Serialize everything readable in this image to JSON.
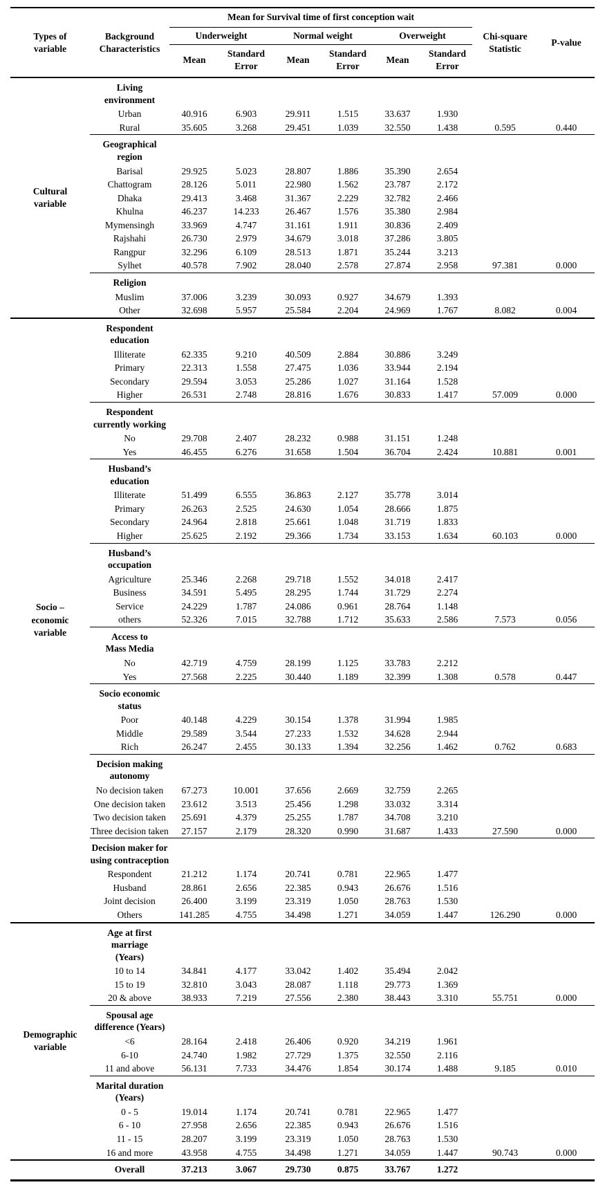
{
  "header": {
    "types_of_variable": "Types of\nvariable",
    "background_characteristics": "Background\nCharacteristics",
    "spanner": "Mean for Survival time of first conception wait",
    "weight_groups": [
      {
        "label": "Underweight"
      },
      {
        "label": "Normal weight"
      },
      {
        "label": "Overweight"
      }
    ],
    "sub_mean": "Mean",
    "sub_se": "Standard\nError",
    "chi_square": "Chi-square\nStatistic",
    "p_value": "P-value"
  },
  "sections": [
    {
      "type_label": "Cultural\nvariable",
      "subsections": [
        {
          "name": "Living\nenvironment",
          "rows": [
            {
              "label": "Urban",
              "values": [
                "40.916",
                "6.903",
                "29.911",
                "1.515",
                "33.637",
                "1.930"
              ]
            },
            {
              "label": "Rural",
              "values": [
                "35.605",
                "3.268",
                "29.451",
                "1.039",
                "32.550",
                "1.438"
              ],
              "chi": "0.595",
              "p": "0.440"
            }
          ]
        },
        {
          "name": "Geographical\nregion",
          "rows": [
            {
              "label": "Barisal",
              "values": [
                "29.925",
                "5.023",
                "28.807",
                "1.886",
                "35.390",
                "2.654"
              ]
            },
            {
              "label": "Chattogram",
              "values": [
                "28.126",
                "5.011",
                "22.980",
                "1.562",
                "23.787",
                "2.172"
              ]
            },
            {
              "label": "Dhaka",
              "values": [
                "29.413",
                "3.468",
                "31.367",
                "2.229",
                "32.782",
                "2.466"
              ]
            },
            {
              "label": "Khulna",
              "values": [
                "46.237",
                "14.233",
                "26.467",
                "1.576",
                "35.380",
                "2.984"
              ]
            },
            {
              "label": "Mymensingh",
              "values": [
                "33.969",
                "4.747",
                "31.161",
                "1.911",
                "30.836",
                "2.409"
              ]
            },
            {
              "label": "Rajshahi",
              "values": [
                "26.730",
                "2.979",
                "34.679",
                "3.018",
                "37.286",
                "3.805"
              ]
            },
            {
              "label": "Rangpur",
              "values": [
                "32.296",
                "6.109",
                "28.513",
                "1.871",
                "35.244",
                "3.213"
              ]
            },
            {
              "label": "Sylhet",
              "values": [
                "40.578",
                "7.902",
                "28.040",
                "2.578",
                "27.874",
                "2.958"
              ],
              "chi": "97.381",
              "p": "0.000"
            }
          ]
        },
        {
          "name": "Religion",
          "rows": [
            {
              "label": "Muslim",
              "values": [
                "37.006",
                "3.239",
                "30.093",
                "0.927",
                "34.679",
                "1.393"
              ]
            },
            {
              "label": "Other",
              "values": [
                "32.698",
                "5.957",
                "25.584",
                "2.204",
                "24.969",
                "1.767"
              ],
              "chi": "8.082",
              "p": "0.004"
            }
          ]
        }
      ]
    },
    {
      "type_label": "Socio –\neconomic\nvariable",
      "subsections": [
        {
          "name": "Respondent\neducation",
          "rows": [
            {
              "label": "Illiterate",
              "values": [
                "62.335",
                "9.210",
                "40.509",
                "2.884",
                "30.886",
                "3.249"
              ]
            },
            {
              "label": "Primary",
              "values": [
                "22.313",
                "1.558",
                "27.475",
                "1.036",
                "33.944",
                "2.194"
              ]
            },
            {
              "label": "Secondary",
              "values": [
                "29.594",
                "3.053",
                "25.286",
                "1.027",
                "31.164",
                "1.528"
              ]
            },
            {
              "label": "Higher",
              "values": [
                "26.531",
                "2.748",
                "28.816",
                "1.676",
                "30.833",
                "1.417"
              ],
              "chi": "57.009",
              "p": "0.000"
            }
          ]
        },
        {
          "name": "Respondent\ncurrently working",
          "rows": [
            {
              "label": "No",
              "values": [
                "29.708",
                "2.407",
                "28.232",
                "0.988",
                "31.151",
                "1.248"
              ]
            },
            {
              "label": "Yes",
              "values": [
                "46.455",
                "6.276",
                "31.658",
                "1.504",
                "36.704",
                "2.424"
              ],
              "chi": "10.881",
              "p": "0.001"
            }
          ]
        },
        {
          "name": "Husband’s\neducation",
          "rows": [
            {
              "label": "Illiterate",
              "values": [
                "51.499",
                "6.555",
                "36.863",
                "2.127",
                "35.778",
                "3.014"
              ]
            },
            {
              "label": "Primary",
              "values": [
                "26.263",
                "2.525",
                "24.630",
                "1.054",
                "28.666",
                "1.875"
              ]
            },
            {
              "label": "Secondary",
              "values": [
                "24.964",
                "2.818",
                "25.661",
                "1.048",
                "31.719",
                "1.833"
              ]
            },
            {
              "label": "Higher",
              "values": [
                "25.625",
                "2.192",
                "29.366",
                "1.734",
                "33.153",
                "1.634"
              ],
              "chi": "60.103",
              "p": "0.000"
            }
          ]
        },
        {
          "name": "Husband’s\noccupation",
          "rows": [
            {
              "label": "Agriculture",
              "values": [
                "25.346",
                "2.268",
                "29.718",
                "1.552",
                "34.018",
                "2.417"
              ]
            },
            {
              "label": "Business",
              "values": [
                "34.591",
                "5.495",
                "28.295",
                "1.744",
                "31.729",
                "2.274"
              ]
            },
            {
              "label": "Service",
              "values": [
                "24.229",
                "1.787",
                "24.086",
                "0.961",
                "28.764",
                "1.148"
              ]
            },
            {
              "label": "others",
              "values": [
                "52.326",
                "7.015",
                "32.788",
                "1.712",
                "35.633",
                "2.586"
              ],
              "chi": "7.573",
              "p": "0.056"
            }
          ]
        },
        {
          "name": "Access to\nMass Media",
          "rows": [
            {
              "label": "No",
              "values": [
                "42.719",
                "4.759",
                "28.199",
                "1.125",
                "33.783",
                "2.212"
              ]
            },
            {
              "label": "Yes",
              "values": [
                "27.568",
                "2.225",
                "30.440",
                "1.189",
                "32.399",
                "1.308"
              ],
              "chi": "0.578",
              "p": "0.447"
            }
          ]
        },
        {
          "name": "Socio economic\nstatus",
          "rows": [
            {
              "label": "Poor",
              "values": [
                "40.148",
                "4.229",
                "30.154",
                "1.378",
                "31.994",
                "1.985"
              ]
            },
            {
              "label": "Middle",
              "values": [
                "29.589",
                "3.544",
                "27.233",
                "1.532",
                "34.628",
                "2.944"
              ]
            },
            {
              "label": "Rich",
              "values": [
                "26.247",
                "2.455",
                "30.133",
                "1.394",
                "32.256",
                "1.462"
              ],
              "chi": "0.762",
              "p": "0.683"
            }
          ]
        },
        {
          "name": "Decision making\nautonomy",
          "rows": [
            {
              "label": "No decision taken",
              "values": [
                "67.273",
                "10.001",
                "37.656",
                "2.669",
                "32.759",
                "2.265"
              ]
            },
            {
              "label": "One decision taken",
              "values": [
                "23.612",
                "3.513",
                "25.456",
                "1.298",
                "33.032",
                "3.314"
              ]
            },
            {
              "label": "Two decision taken",
              "values": [
                "25.691",
                "4.379",
                "25.255",
                "1.787",
                "34.708",
                "3.210"
              ]
            },
            {
              "label": "Three decision taken",
              "values": [
                "27.157",
                "2.179",
                "28.320",
                "0.990",
                "31.687",
                "1.433"
              ],
              "chi": "27.590",
              "p": "0.000"
            }
          ]
        },
        {
          "name": "Decision maker for\nusing contraception",
          "rows": [
            {
              "label": "Respondent",
              "values": [
                "21.212",
                "1.174",
                "20.741",
                "0.781",
                "22.965",
                "1.477"
              ]
            },
            {
              "label": "Husband",
              "values": [
                "28.861",
                "2.656",
                "22.385",
                "0.943",
                "26.676",
                "1.516"
              ]
            },
            {
              "label": "Joint decision",
              "values": [
                "26.400",
                "3.199",
                "23.319",
                "1.050",
                "28.763",
                "1.530"
              ]
            },
            {
              "label": "Others",
              "values": [
                "141.285",
                "4.755",
                "34.498",
                "1.271",
                "34.059",
                "1.447"
              ],
              "chi": "126.290",
              "p": "0.000"
            }
          ]
        }
      ]
    },
    {
      "type_label": "Demographic\nvariable",
      "subsections": [
        {
          "name": "Age at first marriage\n(Years)",
          "rows": [
            {
              "label": "10 to 14",
              "values": [
                "34.841",
                "4.177",
                "33.042",
                "1.402",
                "35.494",
                "2.042"
              ]
            },
            {
              "label": "15 to 19",
              "values": [
                "32.810",
                "3.043",
                "28.087",
                "1.118",
                "29.773",
                "1.369"
              ]
            },
            {
              "label": "20 & above",
              "values": [
                "38.933",
                "7.219",
                "27.556",
                "2.380",
                "38.443",
                "3.310"
              ],
              "chi": "55.751",
              "p": "0.000"
            }
          ]
        },
        {
          "name": "Spousal age\ndifference (Years)",
          "rows": [
            {
              "label": "<6",
              "values": [
                "28.164",
                "2.418",
                "26.406",
                "0.920",
                "34.219",
                "1.961"
              ]
            },
            {
              "label": "6-10",
              "values": [
                "24.740",
                "1.982",
                "27.729",
                "1.375",
                "32.550",
                "2.116"
              ]
            },
            {
              "label": "11 and above",
              "values": [
                "56.131",
                "7.733",
                "34.476",
                "1.854",
                "30.174",
                "1.488"
              ],
              "chi": "9.185",
              "p": "0.010"
            }
          ]
        },
        {
          "name": "Marital duration\n(Years)",
          "rows": [
            {
              "label": "0 - 5",
              "values": [
                "19.014",
                "1.174",
                "20.741",
                "0.781",
                "22.965",
                "1.477"
              ]
            },
            {
              "label": "6 - 10",
              "values": [
                "27.958",
                "2.656",
                "22.385",
                "0.943",
                "26.676",
                "1.516"
              ]
            },
            {
              "label": "11 - 15",
              "values": [
                "28.207",
                "3.199",
                "23.319",
                "1.050",
                "28.763",
                "1.530"
              ]
            },
            {
              "label": "16 and more",
              "values": [
                "43.958",
                "4.755",
                "34.498",
                "1.271",
                "34.059",
                "1.447"
              ],
              "chi": "90.743",
              "p": "0.000"
            }
          ]
        }
      ]
    }
  ],
  "overall": {
    "label": "Overall",
    "values": [
      "37.213",
      "3.067",
      "29.730",
      "0.875",
      "33.767",
      "1.272"
    ]
  }
}
